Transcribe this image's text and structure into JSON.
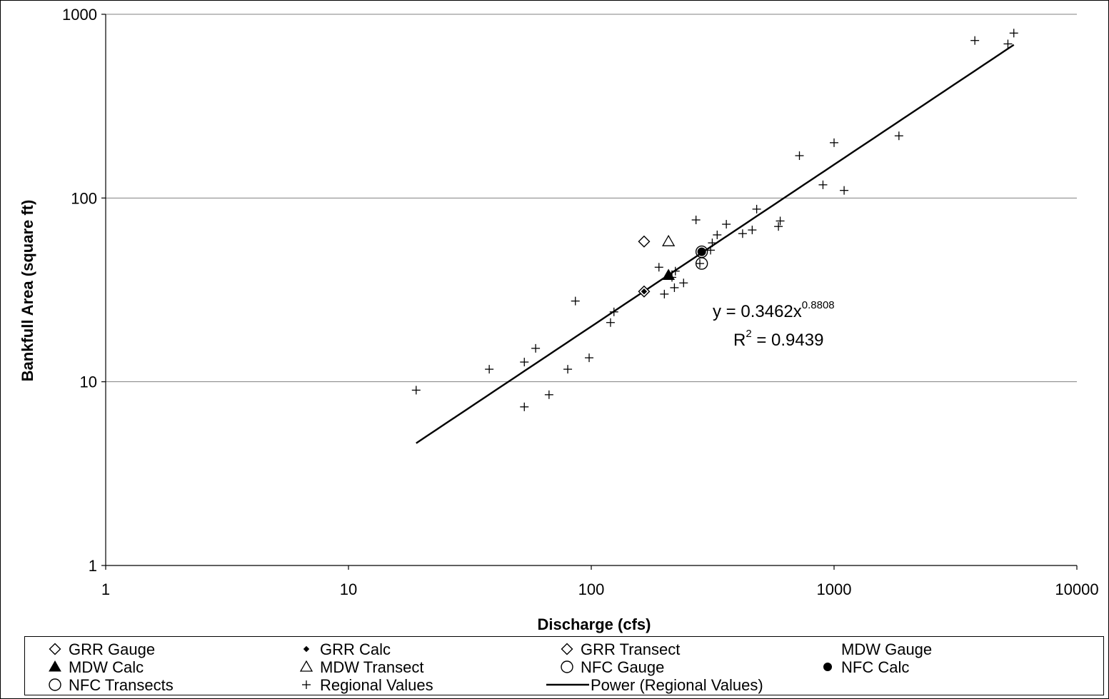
{
  "chart_data": {
    "type": "scatter",
    "x_scale": "log",
    "y_scale": "log",
    "xlabel": "Discharge (cfs)",
    "ylabel": "Bankfull Area (square ft)",
    "xlim": [
      1,
      10000
    ],
    "ylim": [
      1,
      1000
    ],
    "x_ticks": [
      "1",
      "10",
      "100",
      "1000",
      "10000"
    ],
    "y_ticks": [
      "1",
      "10",
      "100",
      "1000"
    ],
    "grid": "horizontal",
    "series": [
      {
        "name": "GRR Gauge",
        "marker": "diamond-open",
        "points": [
          [
            165,
            58
          ]
        ]
      },
      {
        "name": "GRR Calc",
        "marker": "diamond-small-filled",
        "points": [
          [
            165,
            31
          ]
        ]
      },
      {
        "name": "GRR Transect",
        "marker": "diamond-open",
        "points": [
          [
            165,
            31
          ]
        ]
      },
      {
        "name": "MDW Gauge",
        "marker": "none",
        "points": []
      },
      {
        "name": "MDW Calc",
        "marker": "triangle-filled",
        "points": [
          [
            208,
            38
          ]
        ]
      },
      {
        "name": "MDW Transect",
        "marker": "triangle-open",
        "points": [
          [
            208,
            58
          ]
        ]
      },
      {
        "name": "NFC Gauge",
        "marker": "circle-open",
        "points": [
          [
            285,
            44
          ],
          [
            285,
            51
          ]
        ]
      },
      {
        "name": "NFC Calc",
        "marker": "circle-filled",
        "points": [
          [
            285,
            51
          ]
        ]
      },
      {
        "name": "NFC Transects",
        "marker": "circle-open",
        "points": []
      },
      {
        "name": "Regional Values",
        "marker": "plus",
        "points": [
          [
            19,
            9
          ],
          [
            38,
            11.7
          ],
          [
            53,
            12.8
          ],
          [
            53,
            7.3
          ],
          [
            59,
            15.2
          ],
          [
            67,
            8.5
          ],
          [
            80,
            11.7
          ],
          [
            86,
            27.5
          ],
          [
            98,
            13.5
          ],
          [
            120,
            21
          ],
          [
            124,
            24
          ],
          [
            190,
            42
          ],
          [
            200,
            30
          ],
          [
            215,
            37
          ],
          [
            220,
            32.5
          ],
          [
            222,
            40
          ],
          [
            240,
            34.5
          ],
          [
            270,
            76
          ],
          [
            280,
            44
          ],
          [
            310,
            52
          ],
          [
            315,
            57
          ],
          [
            330,
            63
          ],
          [
            360,
            72
          ],
          [
            420,
            64
          ],
          [
            460,
            67
          ],
          [
            480,
            87
          ],
          [
            590,
            70
          ],
          [
            600,
            75
          ],
          [
            720,
            170
          ],
          [
            900,
            118
          ],
          [
            1000,
            200
          ],
          [
            1100,
            110
          ],
          [
            1850,
            218
          ],
          [
            3800,
            720
          ],
          [
            5200,
            690
          ],
          [
            5500,
            790
          ]
        ]
      }
    ],
    "trendline": {
      "name": "Power (Regional Values)",
      "type": "power",
      "coefficient": 0.3462,
      "exponent": 0.8808,
      "x_range": [
        19,
        5500
      ]
    },
    "annotation": {
      "eq_main": "y = 0.3462x",
      "eq_exp": "0.8808",
      "r2_label": "R",
      "r2_sup": "2",
      "r2_value": " = 0.9439"
    },
    "legend": {
      "placement": "bottom",
      "items": [
        {
          "label": "GRR Gauge",
          "marker": "diamond-open"
        },
        {
          "label": "GRR Calc",
          "marker": "diamond-small-filled"
        },
        {
          "label": "GRR Transect",
          "marker": "diamond-open"
        },
        {
          "label": "MDW Gauge",
          "marker": "none"
        },
        {
          "label": "MDW Calc",
          "marker": "triangle-filled"
        },
        {
          "label": "MDW Transect",
          "marker": "triangle-open"
        },
        {
          "label": "NFC Gauge",
          "marker": "circle-open"
        },
        {
          "label": "NFC Calc",
          "marker": "circle-filled"
        },
        {
          "label": "NFC Transects",
          "marker": "circle-open"
        },
        {
          "label": "Regional Values",
          "marker": "plus"
        },
        {
          "label": "Power (Regional Values)",
          "marker": "line"
        }
      ]
    }
  }
}
